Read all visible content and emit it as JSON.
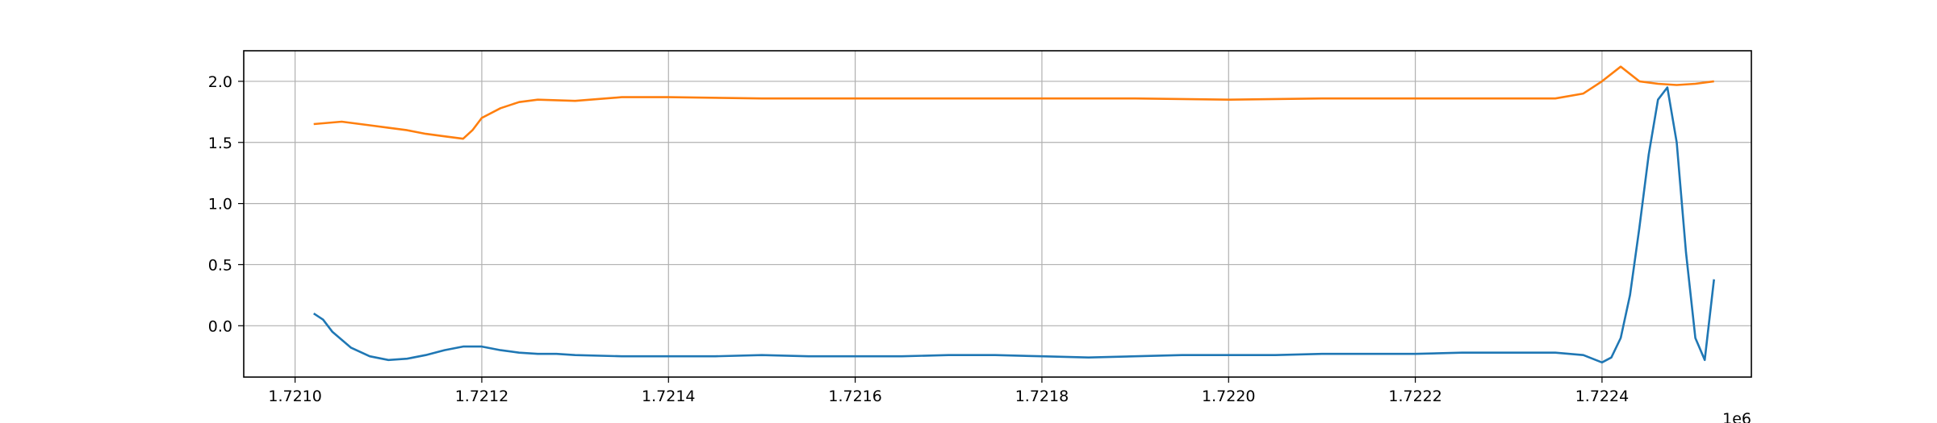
{
  "chart_data": {
    "type": "line",
    "title": "",
    "xlabel": "",
    "ylabel": "",
    "x_offset_label": "1e6",
    "xlim": [
      1720945,
      1722560
    ],
    "ylim": [
      -0.42,
      2.25
    ],
    "grid": true,
    "x_ticks": [
      1.721,
      1.7212,
      1.7214,
      1.7216,
      1.7218,
      1.722,
      1.7222,
      1.7224
    ],
    "x_tick_labels": [
      "1.7210",
      "1.7212",
      "1.7214",
      "1.7216",
      "1.7218",
      "1.7220",
      "1.7222",
      "1.7224"
    ],
    "y_ticks": [
      0.0,
      0.5,
      1.0,
      1.5,
      2.0
    ],
    "y_tick_labels": [
      "0.0",
      "0.5",
      "1.0",
      "1.5",
      "2.0"
    ],
    "series": [
      {
        "color": "#1f77b4",
        "x": [
          1721020,
          1721030,
          1721040,
          1721060,
          1721080,
          1721100,
          1721120,
          1721140,
          1721160,
          1721180,
          1721200,
          1721220,
          1721240,
          1721260,
          1721280,
          1721300,
          1721350,
          1721400,
          1721450,
          1721500,
          1721550,
          1721600,
          1721650,
          1721700,
          1721750,
          1721800,
          1721850,
          1721900,
          1721950,
          1722000,
          1722050,
          1722100,
          1722150,
          1722200,
          1722250,
          1722300,
          1722350,
          1722380,
          1722400,
          1722410,
          1722420,
          1722430,
          1722440,
          1722450,
          1722460,
          1722470,
          1722480,
          1722490,
          1722500,
          1722510,
          1722520
        ],
        "y": [
          0.1,
          0.05,
          -0.05,
          -0.18,
          -0.25,
          -0.28,
          -0.27,
          -0.24,
          -0.2,
          -0.17,
          -0.17,
          -0.2,
          -0.22,
          -0.23,
          -0.23,
          -0.24,
          -0.25,
          -0.25,
          -0.25,
          -0.24,
          -0.25,
          -0.25,
          -0.25,
          -0.24,
          -0.24,
          -0.25,
          -0.26,
          -0.25,
          -0.24,
          -0.24,
          -0.24,
          -0.23,
          -0.23,
          -0.23,
          -0.22,
          -0.22,
          -0.22,
          -0.24,
          -0.3,
          -0.26,
          -0.1,
          0.25,
          0.8,
          1.4,
          1.85,
          1.95,
          1.5,
          0.6,
          -0.1,
          -0.28,
          0.38
        ]
      },
      {
        "color": "#ff7f0e",
        "x": [
          1721020,
          1721050,
          1721080,
          1721100,
          1721120,
          1721140,
          1721160,
          1721180,
          1721190,
          1721200,
          1721220,
          1721240,
          1721260,
          1721300,
          1721350,
          1721400,
          1721500,
          1721600,
          1721700,
          1721800,
          1721900,
          1722000,
          1722100,
          1722200,
          1722300,
          1722350,
          1722380,
          1722400,
          1722420,
          1722440,
          1722460,
          1722480,
          1722500,
          1722520
        ],
        "y": [
          1.65,
          1.67,
          1.64,
          1.62,
          1.6,
          1.57,
          1.55,
          1.53,
          1.6,
          1.7,
          1.78,
          1.83,
          1.85,
          1.84,
          1.87,
          1.87,
          1.86,
          1.86,
          1.86,
          1.86,
          1.86,
          1.85,
          1.86,
          1.86,
          1.86,
          1.86,
          1.9,
          2.0,
          2.12,
          2.0,
          1.98,
          1.97,
          1.98,
          2.0
        ]
      }
    ]
  }
}
